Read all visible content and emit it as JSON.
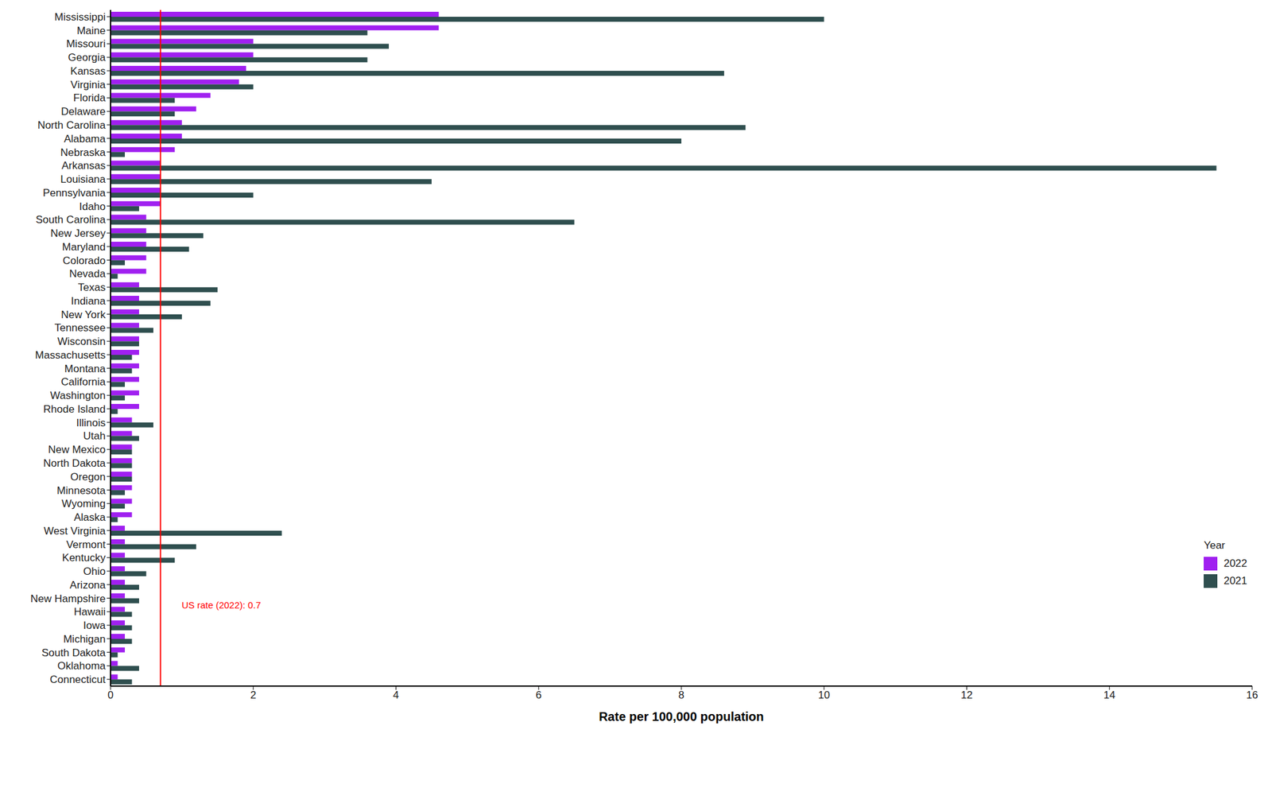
{
  "chart_data": {
    "type": "bar",
    "orientation": "horizontal",
    "xlabel": "Rate per 100,000 population",
    "legend": "right",
    "legend_title": "Year",
    "grid": false,
    "xlim": [
      0,
      16
    ],
    "xticks": [
      0,
      2,
      4,
      6,
      8,
      10,
      12,
      14,
      16
    ],
    "reference_line": {
      "value": 0.7,
      "label": "US rate (2022): 0.7",
      "color": "#ff0000"
    },
    "categories": [
      "Mississippi",
      "Maine",
      "Missouri",
      "Georgia",
      "Kansas",
      "Virginia",
      "Florida",
      "Delaware",
      "North Carolina",
      "Alabama",
      "Nebraska",
      "Arkansas",
      "Louisiana",
      "Pennsylvania",
      "Idaho",
      "South Carolina",
      "New Jersey",
      "Maryland",
      "Colorado",
      "Nevada",
      "Texas",
      "Indiana",
      "New York",
      "Tennessee",
      "Wisconsin",
      "Massachusetts",
      "Montana",
      "California",
      "Washington",
      "Rhode Island",
      "Illinois",
      "Utah",
      "New Mexico",
      "North Dakota",
      "Oregon",
      "Minnesota",
      "Wyoming",
      "Alaska",
      "West Virginia",
      "Vermont",
      "Kentucky",
      "Ohio",
      "Arizona",
      "New Hampshire",
      "Hawaii",
      "Iowa",
      "Michigan",
      "South Dakota",
      "Oklahoma",
      "Connecticut"
    ],
    "series": [
      {
        "name": "2022",
        "color": "#a020f0",
        "values": [
          4.6,
          4.6,
          2.0,
          2.0,
          1.9,
          1.8,
          1.4,
          1.2,
          1.0,
          1.0,
          0.9,
          0.7,
          0.7,
          0.7,
          0.7,
          0.5,
          0.5,
          0.5,
          0.5,
          0.5,
          0.4,
          0.4,
          0.4,
          0.4,
          0.4,
          0.4,
          0.4,
          0.4,
          0.4,
          0.4,
          0.3,
          0.3,
          0.3,
          0.3,
          0.3,
          0.3,
          0.3,
          0.3,
          0.2,
          0.2,
          0.2,
          0.2,
          0.2,
          0.2,
          0.2,
          0.2,
          0.2,
          0.2,
          0.1,
          0.1
        ]
      },
      {
        "name": "2021",
        "color": "#2f4f4f",
        "values": [
          10.0,
          3.6,
          3.9,
          3.6,
          8.6,
          2.0,
          0.9,
          0.9,
          8.9,
          8.0,
          0.2,
          15.5,
          4.5,
          2.0,
          0.4,
          6.5,
          1.3,
          1.1,
          0.2,
          0.1,
          1.5,
          1.4,
          1.0,
          0.6,
          0.4,
          0.3,
          0.3,
          0.2,
          0.2,
          0.1,
          0.6,
          0.4,
          0.3,
          0.3,
          0.3,
          0.2,
          0.2,
          0.1,
          2.4,
          1.2,
          0.9,
          0.5,
          0.4,
          0.4,
          0.3,
          0.3,
          0.3,
          0.1,
          0.4,
          0.3
        ]
      }
    ]
  }
}
